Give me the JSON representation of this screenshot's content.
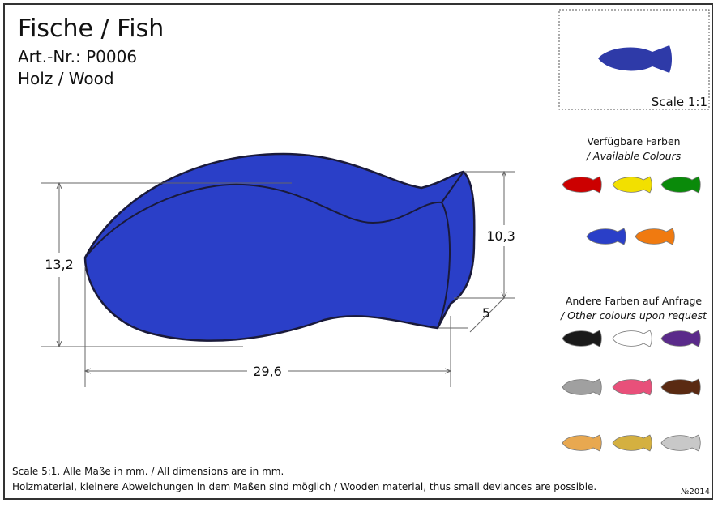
{
  "header": {
    "title": "Fische / Fish",
    "article": "Art.-Nr.: P0006",
    "material": "Holz / Wood"
  },
  "drawing": {
    "height_label": "13,2",
    "length_label": "29,6",
    "tail_height_label": "10,3",
    "tail_width_label": "5"
  },
  "preview": {
    "scale": "Scale 1:1"
  },
  "available": {
    "heading": [
      "Verfügbare Farben",
      "/ Available Colours"
    ],
    "colors": [
      "#cc0000",
      "#f2e000",
      "#0a8a0a",
      "#2a3fc8",
      "#f07a10"
    ]
  },
  "other": {
    "heading": [
      "Andere Farben auf Anfrage",
      "/ Other colours upon request"
    ],
    "colors": [
      "#1a1a1a",
      "#ffffff",
      "#5a2a8a",
      "#a0a0a0",
      "#e8507a",
      "#5a2a12",
      "#e8a850",
      "#d4b040",
      "#c8c8c8"
    ]
  },
  "footer": {
    "lines": [
      "Scale 5:1. Alle Maße in mm. / All dimensions are in mm.",
      "Holzmaterial, kleinere Abweichungen in dem Maßen sind möglich / Wooden material, thus small deviances are possible."
    ],
    "code": "№2014"
  }
}
